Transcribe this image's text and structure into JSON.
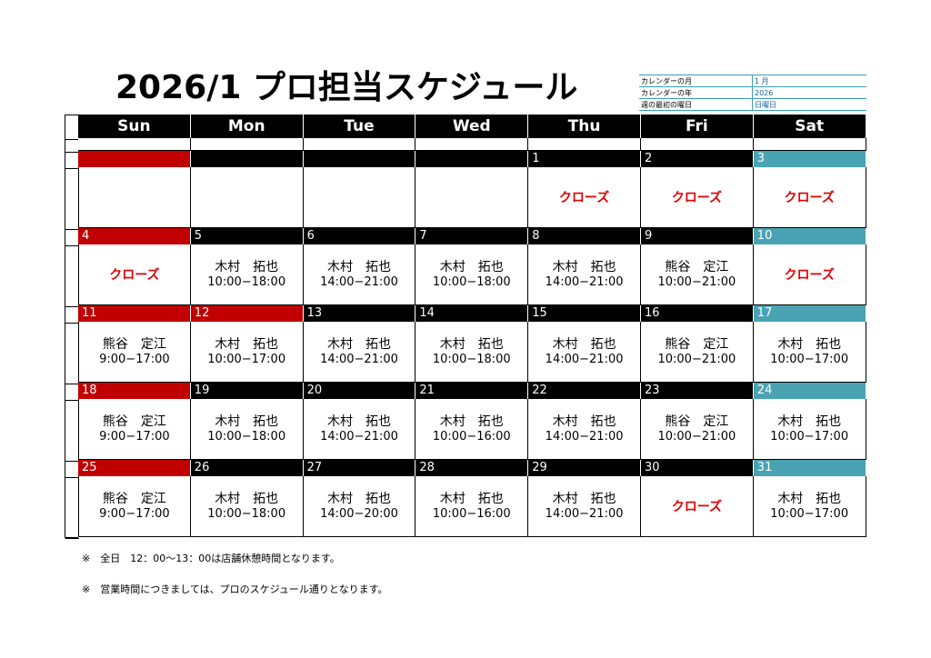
{
  "title": "2026/1 プロ担当スケジュール",
  "settings": [
    {
      "key": "カレンダーの月",
      "value": "1 月"
    },
    {
      "key": "カレンダーの年",
      "value": "2026"
    },
    {
      "key": "週の最初の曜日",
      "value": "日曜日"
    }
  ],
  "weekdays": [
    "Sun",
    "Mon",
    "Tue",
    "Wed",
    "Thu",
    "Fri",
    "Sat"
  ],
  "weeks": [
    [
      {
        "day": "",
        "name": "",
        "time": ""
      },
      {
        "day": "",
        "name": "",
        "time": ""
      },
      {
        "day": "",
        "name": "",
        "time": ""
      },
      {
        "day": "",
        "name": "",
        "time": ""
      },
      {
        "day": "1",
        "closed": "クローズ"
      },
      {
        "day": "2",
        "closed": "クローズ"
      },
      {
        "day": "3",
        "closed": "クローズ"
      }
    ],
    [
      {
        "day": "4",
        "closed": "クローズ"
      },
      {
        "day": "5",
        "name": "木村　拓也",
        "time": "10:00−18:00"
      },
      {
        "day": "6",
        "name": "木村　拓也",
        "time": "14:00−21:00"
      },
      {
        "day": "7",
        "name": "木村　拓也",
        "time": "10:00−18:00"
      },
      {
        "day": "8",
        "name": "木村　拓也",
        "time": "14:00−21:00"
      },
      {
        "day": "9",
        "name": "熊谷　定江",
        "time": "10:00−21:00"
      },
      {
        "day": "10",
        "closed": "クローズ"
      }
    ],
    [
      {
        "day": "11",
        "name": "熊谷　定江",
        "time": "9:00−17:00"
      },
      {
        "day": "12",
        "name": "木村　拓也",
        "time": "10:00−17:00"
      },
      {
        "day": "13",
        "name": "木村　拓也",
        "time": "14:00−21:00"
      },
      {
        "day": "14",
        "name": "木村　拓也",
        "time": "10:00−18:00"
      },
      {
        "day": "15",
        "name": "木村　拓也",
        "time": "14:00−21:00"
      },
      {
        "day": "16",
        "name": "熊谷　定江",
        "time": "10:00−21:00"
      },
      {
        "day": "17",
        "name": "木村　拓也",
        "time": "10:00−17:00"
      }
    ],
    [
      {
        "day": "18",
        "name": "熊谷　定江",
        "time": "9:00−17:00"
      },
      {
        "day": "19",
        "name": "木村　拓也",
        "time": "10:00−18:00"
      },
      {
        "day": "20",
        "name": "木村　拓也",
        "time": "14:00−21:00"
      },
      {
        "day": "21",
        "name": "木村　拓也",
        "time": "10:00−16:00"
      },
      {
        "day": "22",
        "name": "木村　拓也",
        "time": "14:00−21:00"
      },
      {
        "day": "23",
        "name": "熊谷　定江",
        "time": "10:00−21:00"
      },
      {
        "day": "24",
        "name": "木村　拓也",
        "time": "10:00−17:00"
      }
    ],
    [
      {
        "day": "25",
        "name": "熊谷　定江",
        "time": "9:00−17:00"
      },
      {
        "day": "26",
        "name": "木村　拓也",
        "time": "10:00−18:00"
      },
      {
        "day": "27",
        "name": "木村　拓也",
        "time": "14:00−20:00"
      },
      {
        "day": "28",
        "name": "木村　拓也",
        "time": "10:00−16:00"
      },
      {
        "day": "29",
        "name": "木村　拓也",
        "time": "14:00−21:00"
      },
      {
        "day": "30",
        "closed": "クローズ"
      },
      {
        "day": "31",
        "name": "木村　拓也",
        "time": "10:00−17:00"
      }
    ]
  ],
  "holiday_overrides": {
    "12": "sun"
  },
  "notes": [
    "※　全日　12：00～13：00は店舗休憩時間となります。",
    "※　営業時間につきましては、プロのスケジュール通りとなります。"
  ],
  "colors": {
    "sunday": "#c00000",
    "saturday": "#4aa3b3",
    "header": "#000000",
    "closed_text": "#e00000"
  }
}
